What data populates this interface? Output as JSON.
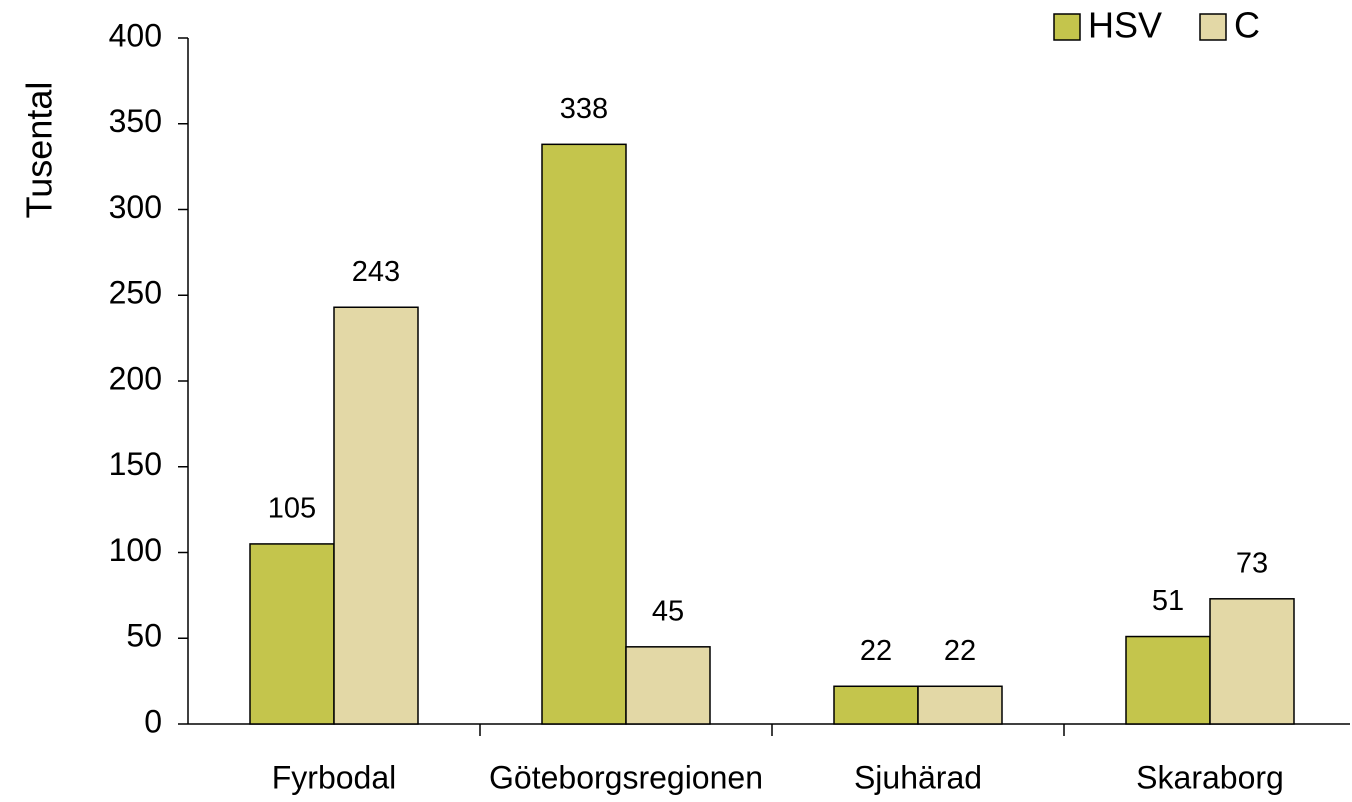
{
  "chart_data": {
    "type": "bar",
    "y_label": "Tusental",
    "categories": [
      "Fyrbodal",
      "Göteborgsregionen",
      "Sjuhärad",
      "Skaraborg"
    ],
    "series": [
      {
        "name": "HSV",
        "color": "#c4c54c",
        "values": [
          105,
          338,
          22,
          51
        ]
      },
      {
        "name": "C",
        "color": "#e3d8a6",
        "values": [
          243,
          45,
          22,
          73
        ]
      }
    ],
    "ylim": [
      0,
      400
    ],
    "yticks": [
      0,
      50,
      100,
      150,
      200,
      250,
      300,
      350,
      400
    ],
    "legend": "upper right",
    "grid": false
  }
}
